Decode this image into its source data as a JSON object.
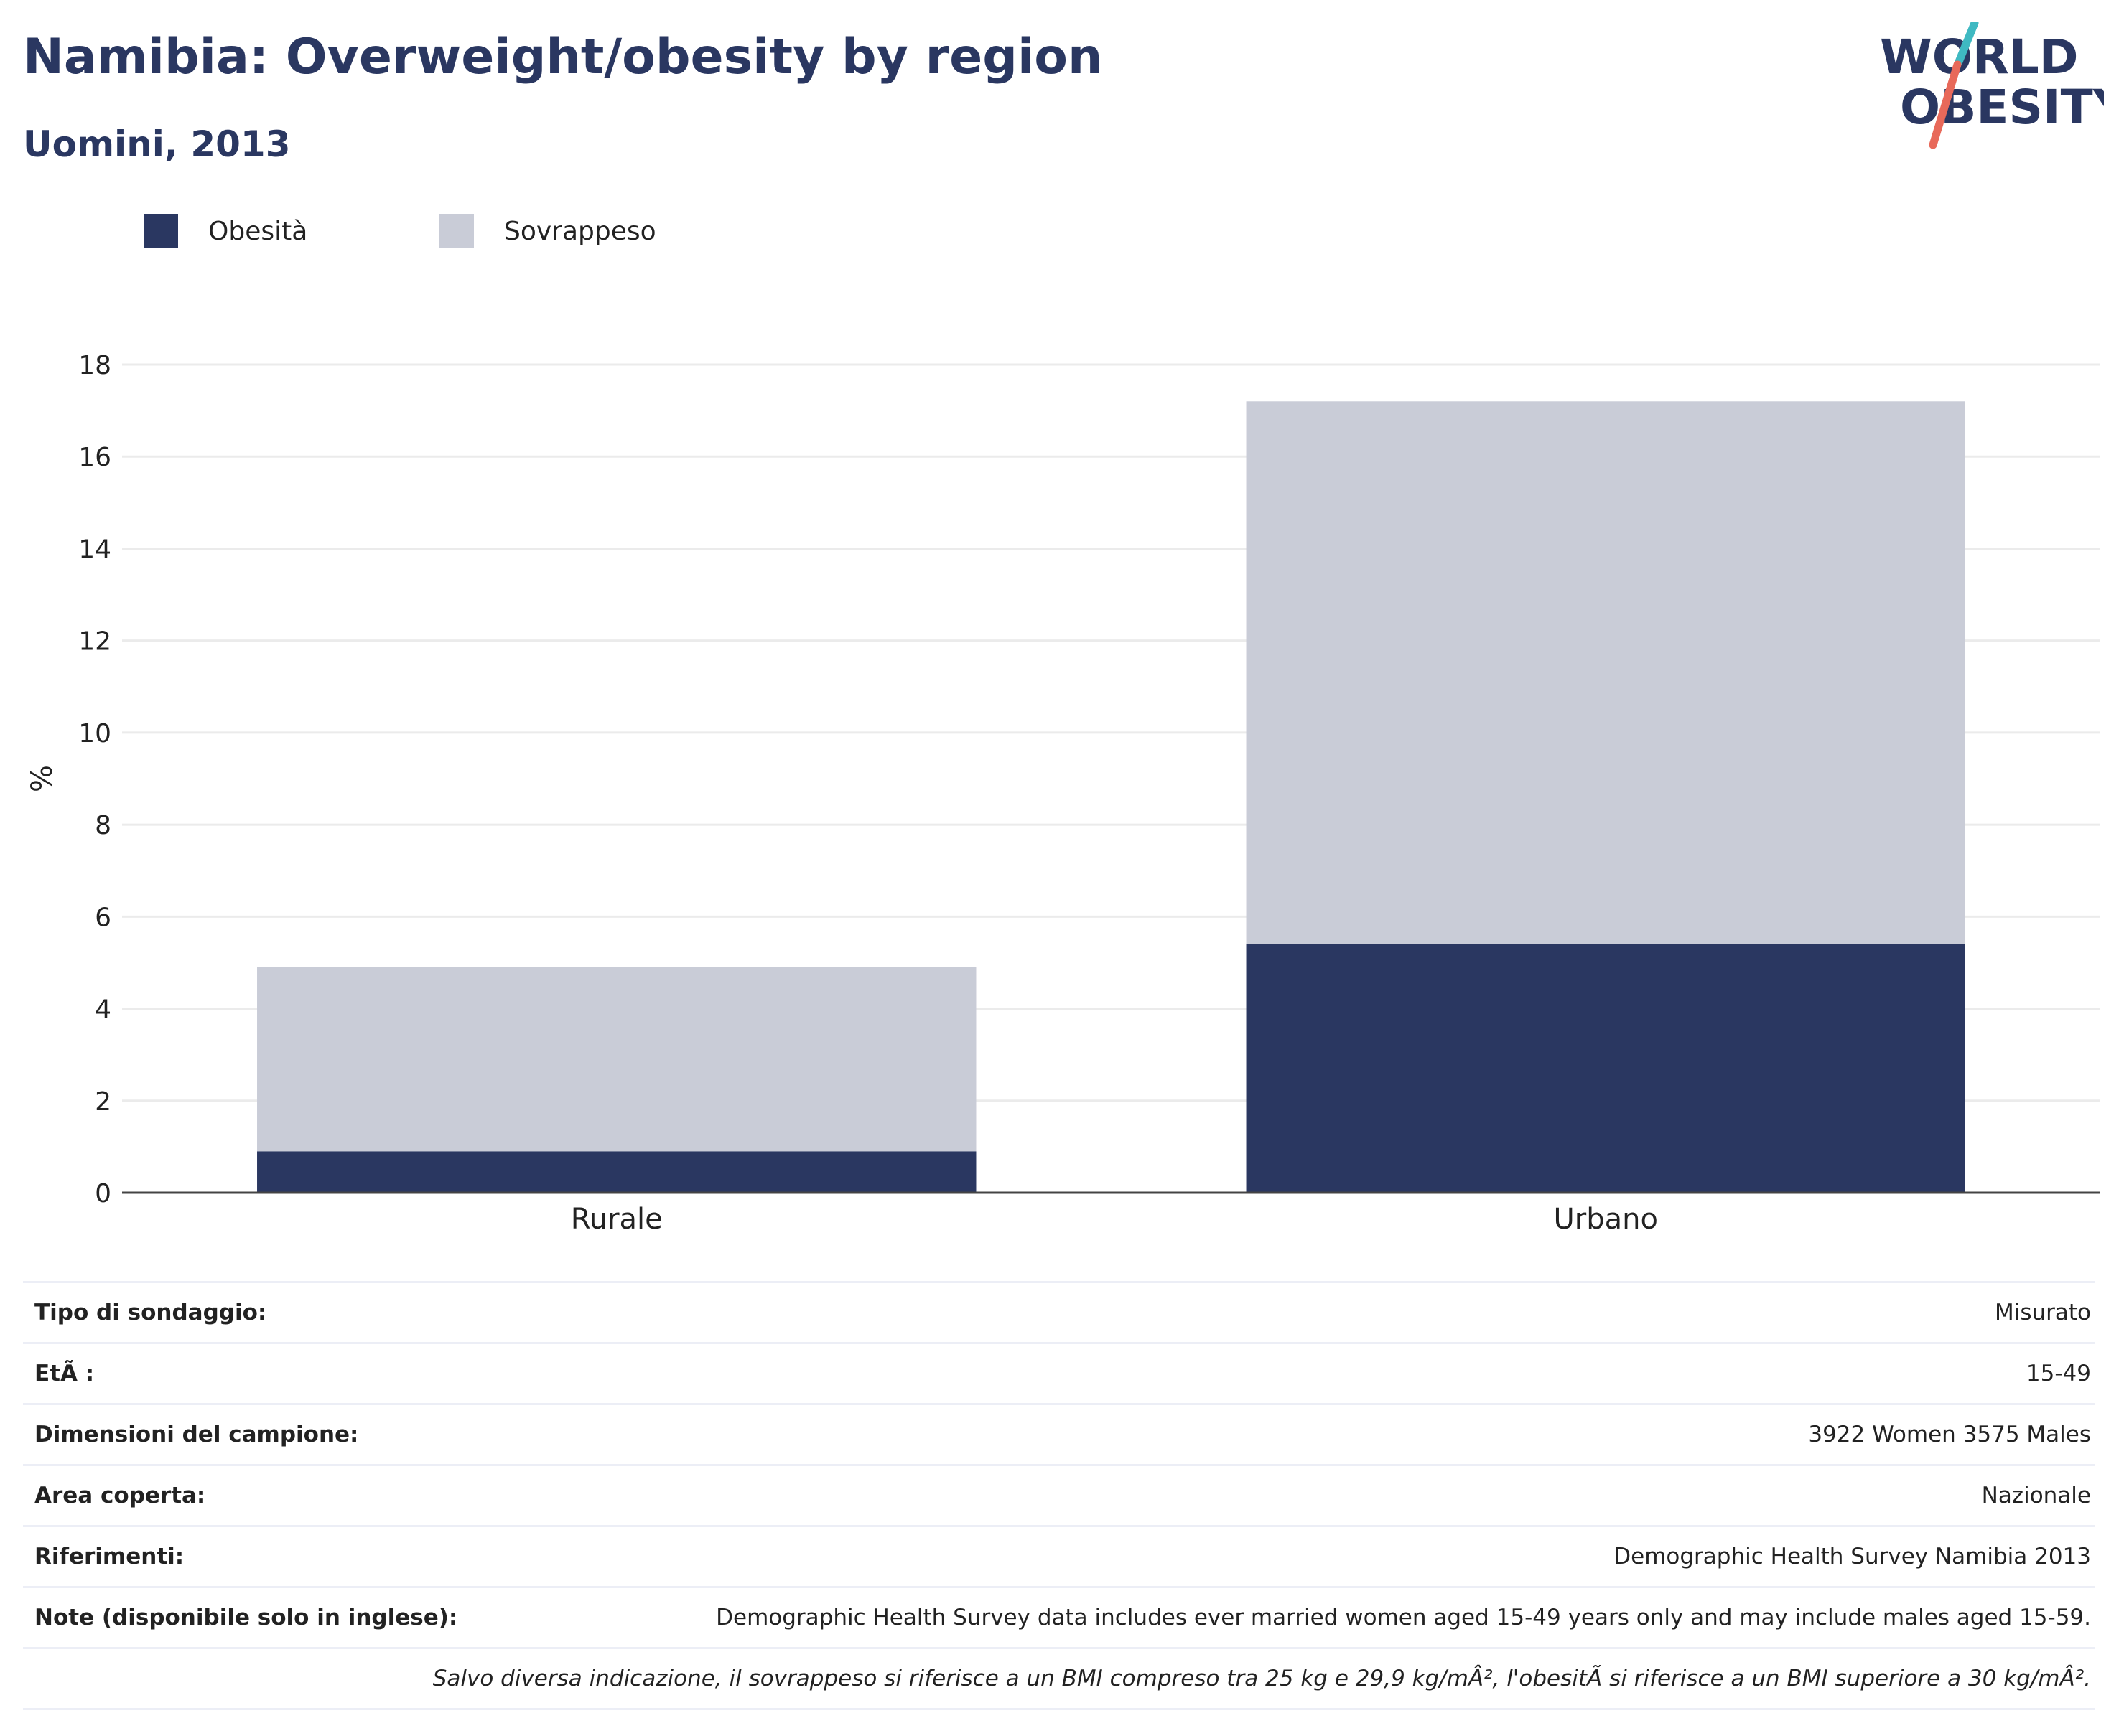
{
  "header": {
    "title": "Namibia: Overweight/obesity by region",
    "subtitle": "Uomini, 2013"
  },
  "logo": {
    "line1": "WORLD",
    "line2": "OBESITY",
    "colors": {
      "text": "#2a3761",
      "slash_top": "#3fb9c2",
      "slash_bottom": "#e8695a"
    }
  },
  "legend": [
    {
      "label": "Obesità",
      "color": "#2a3761"
    },
    {
      "label": "Sovrappeso",
      "color": "#c9ccd7"
    }
  ],
  "chart_data": {
    "type": "bar",
    "stacked": true,
    "categories": [
      "Rurale",
      "Urbano"
    ],
    "series": [
      {
        "name": "Obesità",
        "color": "#2a3761",
        "values": [
          0.9,
          5.4
        ]
      },
      {
        "name": "Sovrappeso",
        "color": "#c9ccd7",
        "values": [
          4.0,
          11.8
        ]
      }
    ],
    "ylabel": "%",
    "ylim": [
      0,
      18
    ],
    "yticks": [
      0,
      2,
      4,
      6,
      8,
      10,
      12,
      14,
      16,
      18
    ],
    "grid": true
  },
  "info": {
    "rows": [
      {
        "label": "Tipo di sondaggio:",
        "value": "Misurato"
      },
      {
        "label": "EtÃ :",
        "value": "15-49"
      },
      {
        "label": "Dimensioni del campione:",
        "value": "3922 Women 3575 Males"
      },
      {
        "label": "Area coperta:",
        "value": "Nazionale"
      },
      {
        "label": "Riferimenti:",
        "value": "Demographic Health Survey Namibia 2013"
      },
      {
        "label": "Note (disponibile solo in inglese):",
        "value": "Demographic Health Survey data includes ever married women aged 15-49 years only and may include males aged 15-59."
      }
    ],
    "footnote": "Salvo diversa indicazione, il sovrappeso si riferisce a un BMI compreso tra 25 kg e 29,9 kg/mÂ², l'obesitÃ  si riferisce a un BMI superiore a 30 kg/mÂ²."
  }
}
